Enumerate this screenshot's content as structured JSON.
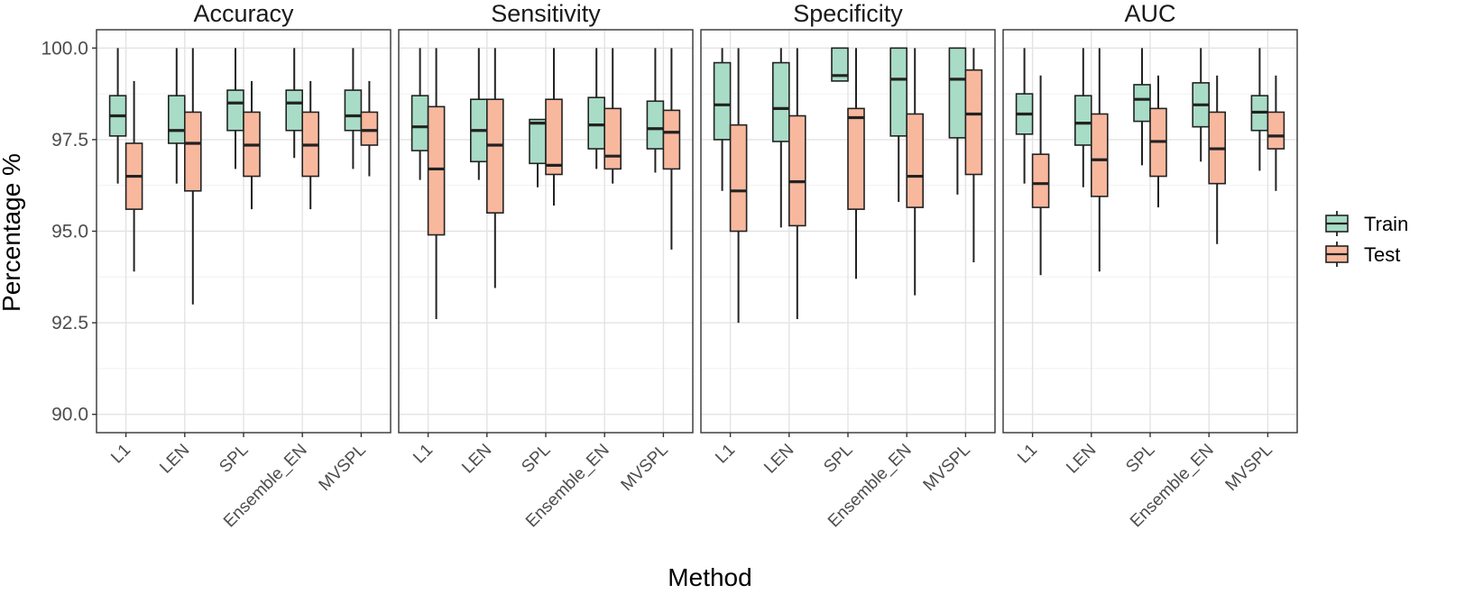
{
  "chart_data": {
    "type": "boxplot",
    "xlabel": "Method",
    "ylabel": "Percentage %",
    "ylim": [
      89.5,
      100.5
    ],
    "y_ticks": [
      "90.0",
      "92.5",
      "95.0",
      "97.5",
      "100.0"
    ],
    "grid": true,
    "legend_position": "right",
    "categories": [
      "L1",
      "LEN",
      "SPL",
      "Ensemble_EN",
      "MVSPL"
    ],
    "series": [
      {
        "name": "Train",
        "color": "#a8dcc6"
      },
      {
        "name": "Test",
        "color": "#f8b89e"
      }
    ],
    "panels": [
      {
        "title": "Accuracy",
        "boxes": {
          "Train": [
            {
              "min": 96.3,
              "q1": 97.6,
              "median": 98.15,
              "q3": 98.7,
              "max": 100.0
            },
            {
              "min": 96.3,
              "q1": 97.4,
              "median": 97.75,
              "q3": 98.7,
              "max": 100.0
            },
            {
              "min": 96.7,
              "q1": 97.75,
              "median": 98.5,
              "q3": 98.85,
              "max": 100.0
            },
            {
              "min": 97.0,
              "q1": 97.75,
              "median": 98.5,
              "q3": 98.85,
              "max": 100.0
            },
            {
              "min": 96.7,
              "q1": 97.75,
              "median": 98.15,
              "q3": 98.85,
              "max": 100.0
            }
          ],
          "Test": [
            {
              "min": 93.9,
              "q1": 95.6,
              "median": 96.5,
              "q3": 97.4,
              "max": 99.1
            },
            {
              "min": 93.0,
              "q1": 96.1,
              "median": 97.4,
              "q3": 98.25,
              "max": 100.0
            },
            {
              "min": 95.6,
              "q1": 96.5,
              "median": 97.35,
              "q3": 98.25,
              "max": 99.1
            },
            {
              "min": 95.6,
              "q1": 96.5,
              "median": 97.35,
              "q3": 98.25,
              "max": 99.1
            },
            {
              "min": 96.5,
              "q1": 97.35,
              "median": 97.75,
              "q3": 98.25,
              "max": 99.1
            }
          ]
        }
      },
      {
        "title": "Sensitivity",
        "boxes": {
          "Train": [
            {
              "min": 96.4,
              "q1": 97.2,
              "median": 97.85,
              "q3": 98.7,
              "max": 100.0
            },
            {
              "min": 96.4,
              "q1": 96.9,
              "median": 97.75,
              "q3": 98.6,
              "max": 100.0
            },
            {
              "min": 96.2,
              "q1": 96.85,
              "median": 97.95,
              "q3": 98.05,
              "max": 98.05
            },
            {
              "min": 96.7,
              "q1": 97.25,
              "median": 97.9,
              "q3": 98.65,
              "max": 100.0
            },
            {
              "min": 96.6,
              "q1": 97.25,
              "median": 97.8,
              "q3": 98.55,
              "max": 100.0
            }
          ],
          "Test": [
            {
              "min": 92.6,
              "q1": 94.9,
              "median": 96.7,
              "q3": 98.4,
              "max": 100.0
            },
            {
              "min": 93.45,
              "q1": 95.5,
              "median": 97.35,
              "q3": 98.6,
              "max": 100.0
            },
            {
              "min": 95.7,
              "q1": 96.55,
              "median": 96.8,
              "q3": 98.6,
              "max": 100.0
            },
            {
              "min": 96.3,
              "q1": 96.7,
              "median": 97.05,
              "q3": 98.35,
              "max": 100.0
            },
            {
              "min": 94.5,
              "q1": 96.7,
              "median": 97.7,
              "q3": 98.3,
              "max": 100.0
            }
          ]
        }
      },
      {
        "title": "Specificity",
        "boxes": {
          "Train": [
            {
              "min": 96.1,
              "q1": 97.5,
              "median": 98.45,
              "q3": 99.6,
              "max": 100.0
            },
            {
              "min": 95.1,
              "q1": 97.45,
              "median": 98.35,
              "q3": 99.6,
              "max": 100.0
            },
            {
              "min": 99.1,
              "q1": 99.1,
              "median": 99.25,
              "q3": 100.0,
              "max": 100.0
            },
            {
              "min": 95.8,
              "q1": 97.6,
              "median": 99.15,
              "q3": 100.0,
              "max": 100.0
            },
            {
              "min": 96.0,
              "q1": 97.55,
              "median": 99.15,
              "q3": 100.0,
              "max": 100.0
            }
          ],
          "Test": [
            {
              "min": 92.5,
              "q1": 95.0,
              "median": 96.1,
              "q3": 97.9,
              "max": 100.0
            },
            {
              "min": 92.6,
              "q1": 95.15,
              "median": 96.35,
              "q3": 98.15,
              "max": 100.0
            },
            {
              "min": 93.7,
              "q1": 95.6,
              "median": 98.1,
              "q3": 98.35,
              "max": 100.0
            },
            {
              "min": 93.25,
              "q1": 95.65,
              "median": 96.5,
              "q3": 98.2,
              "max": 100.0
            },
            {
              "min": 94.15,
              "q1": 96.55,
              "median": 98.2,
              "q3": 99.4,
              "max": 100.0
            }
          ]
        }
      },
      {
        "title": "AUC",
        "boxes": {
          "Train": [
            {
              "min": 96.3,
              "q1": 97.65,
              "median": 98.2,
              "q3": 98.75,
              "max": 100.0
            },
            {
              "min": 96.2,
              "q1": 97.35,
              "median": 97.95,
              "q3": 98.7,
              "max": 100.0
            },
            {
              "min": 96.8,
              "q1": 98.0,
              "median": 98.6,
              "q3": 99.0,
              "max": 100.0
            },
            {
              "min": 96.9,
              "q1": 97.85,
              "median": 98.45,
              "q3": 99.05,
              "max": 100.0
            },
            {
              "min": 96.65,
              "q1": 97.75,
              "median": 98.25,
              "q3": 98.7,
              "max": 100.0
            }
          ],
          "Test": [
            {
              "min": 93.8,
              "q1": 95.65,
              "median": 96.3,
              "q3": 97.1,
              "max": 99.25
            },
            {
              "min": 93.9,
              "q1": 95.95,
              "median": 96.95,
              "q3": 98.2,
              "max": 100.0
            },
            {
              "min": 95.65,
              "q1": 96.5,
              "median": 97.45,
              "q3": 98.35,
              "max": 99.25
            },
            {
              "min": 94.65,
              "q1": 96.3,
              "median": 97.25,
              "q3": 98.25,
              "max": 99.25
            },
            {
              "min": 96.1,
              "q1": 97.25,
              "median": 97.6,
              "q3": 98.25,
              "max": 99.25
            }
          ]
        }
      }
    ]
  }
}
